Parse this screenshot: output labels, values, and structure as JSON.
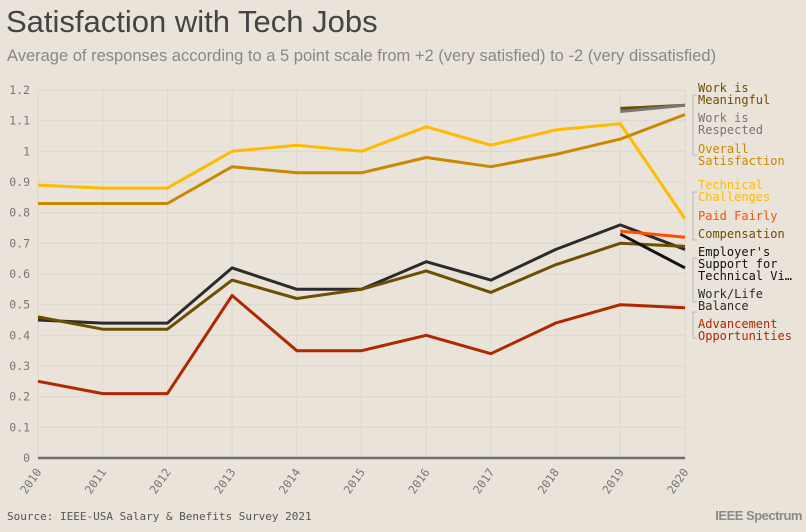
{
  "chart_data": {
    "type": "line",
    "title": "Satisfaction with Tech Jobs",
    "subtitle": "Average of responses according to a 5 point scale from +2 (very satisfied) to -2 (very dissatisfied)",
    "xlabel": "",
    "ylabel": "",
    "x": [
      2010,
      2011,
      2012,
      2013,
      2014,
      2015,
      2016,
      2017,
      2018,
      2019,
      2020
    ],
    "ylim": [
      0,
      1.2
    ],
    "yticks": [
      "0",
      "0.1",
      "0.2",
      "0.3",
      "0.4",
      "0.5",
      "0.6",
      "0.7",
      "0.8",
      "0.9",
      "1",
      "1.1",
      "1.2"
    ],
    "grid": true,
    "legend": "right, direct labels",
    "series": [
      {
        "name": "Technical Challenges",
        "label_lines": [
          "Technical",
          "Challenges"
        ],
        "color": "#ffbb00",
        "values": [
          0.89,
          0.88,
          0.88,
          1.0,
          1.02,
          1.0,
          1.08,
          1.02,
          1.07,
          1.09,
          0.78
        ]
      },
      {
        "name": "Overall Satisfaction",
        "label_lines": [
          "Overall",
          "Satisfaction"
        ],
        "color": "#c98800",
        "values": [
          0.83,
          0.83,
          0.83,
          0.95,
          0.93,
          0.93,
          0.98,
          0.95,
          0.99,
          1.04,
          1.12
        ]
      },
      {
        "name": "Work/Life Balance",
        "label_lines": [
          "Work/Life",
          "Balance"
        ],
        "color": "#2b2b2b",
        "values": [
          0.45,
          0.44,
          0.44,
          0.62,
          0.55,
          0.55,
          0.64,
          0.58,
          0.68,
          0.76,
          0.68
        ]
      },
      {
        "name": "Compensation",
        "label_lines": [
          "Compensation"
        ],
        "color": "#6e4f00",
        "values": [
          0.46,
          0.42,
          0.42,
          0.58,
          0.52,
          0.55,
          0.61,
          0.54,
          0.63,
          0.7,
          0.69
        ]
      },
      {
        "name": "Advancement Opportunities",
        "label_lines": [
          "Advancement",
          "Opportunities"
        ],
        "color": "#b02800",
        "values": [
          0.25,
          0.21,
          0.21,
          0.53,
          0.35,
          0.35,
          0.4,
          0.34,
          0.44,
          0.5,
          0.49
        ]
      },
      {
        "name": "Work is Meaningful",
        "label_lines": [
          "Work is",
          "Meaningful"
        ],
        "color": "#6e4f00",
        "values": [
          null,
          null,
          null,
          null,
          null,
          null,
          null,
          null,
          null,
          1.14,
          1.15
        ]
      },
      {
        "name": "Work is Respected",
        "label_lines": [
          "Work is",
          "Respected"
        ],
        "color": "#777777",
        "values": [
          null,
          null,
          null,
          null,
          null,
          null,
          null,
          null,
          null,
          1.13,
          1.15
        ]
      },
      {
        "name": "Paid Fairly",
        "label_lines": [
          "Paid Fairly"
        ],
        "color": "#ff5000",
        "values": [
          null,
          null,
          null,
          null,
          null,
          null,
          null,
          null,
          null,
          0.74,
          0.72
        ]
      },
      {
        "name": "Employer's Support for Technical Vi…",
        "label_lines": [
          "Employer's",
          "Support for",
          "Technical Vi…"
        ],
        "color": "#111111",
        "values": [
          null,
          null,
          null,
          null,
          null,
          null,
          null,
          null,
          null,
          0.73,
          0.62
        ]
      }
    ],
    "label_order": [
      "Work is Meaningful",
      "Work is Respected",
      "Overall Satisfaction",
      "Technical Challenges",
      "Paid Fairly",
      "Compensation",
      "Employer's Support for Technical Vi…",
      "Work/Life Balance",
      "Advancement Opportunities"
    ]
  },
  "source": "Source: IEEE-USA Salary & Benefits Survey 2021",
  "logo": "IEEE Spectrum"
}
